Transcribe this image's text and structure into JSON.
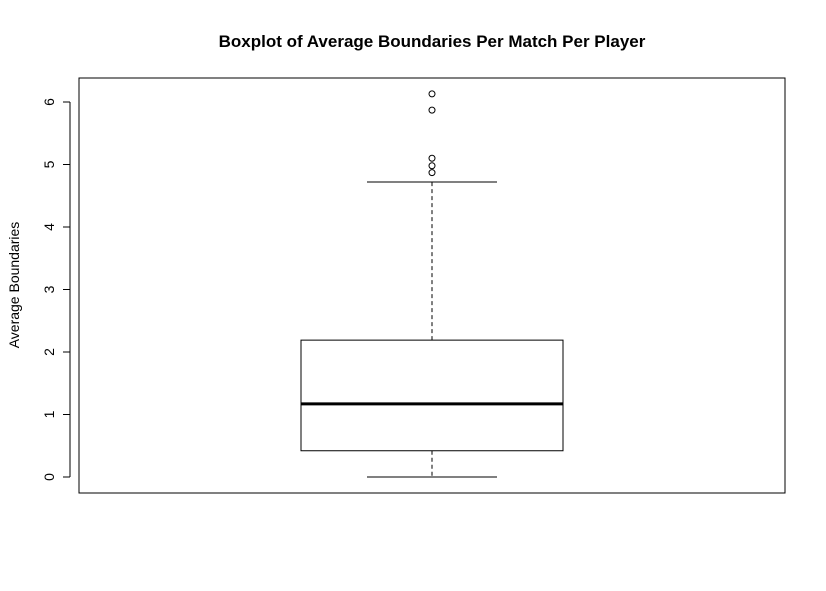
{
  "chart_data": {
    "type": "boxplot",
    "title": "Boxplot of Average Boundaries Per Match Per Player",
    "xlabel": "",
    "ylabel": "Average Boundaries",
    "ylim": [
      -0.25,
      6.4
    ],
    "yticks": [
      "0",
      "1",
      "2",
      "3",
      "4",
      "5",
      "6"
    ],
    "grid": false,
    "box": {
      "whisker_low": 0.0,
      "q1": 0.42,
      "median": 1.17,
      "q3": 2.19,
      "whisker_high": 4.72
    },
    "outliers": [
      4.87,
      4.98,
      5.1,
      5.87,
      6.13
    ]
  }
}
